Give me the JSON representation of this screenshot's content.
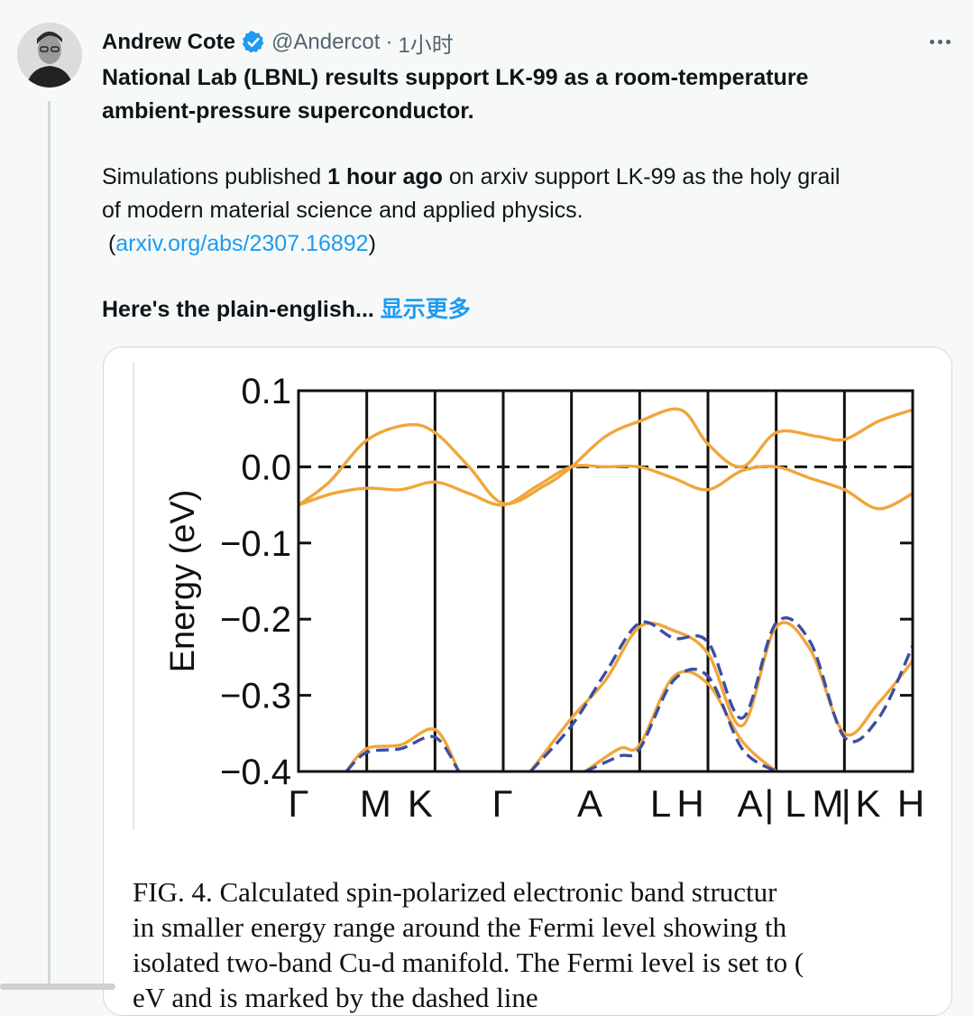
{
  "tweet": {
    "author_name": "Andrew Cote",
    "handle": "@Andercot",
    "separator": "·",
    "time": "1小时",
    "more_icon": "ellipsis-icon",
    "title_line1": "National Lab (LBNL) results support LK-99 as a room-temperature",
    "title_line2": "ambient-pressure superconductor.",
    "body_pre": "Simulations published ",
    "body_bold": "1 hour ago",
    "body_post": " on arxiv support LK-99 as the holy grail",
    "body_line2": "of modern material science and applied physics.",
    "link_open": " (",
    "link_text": "arxiv.org/abs/2307.16892",
    "link_close": ")",
    "teaser": "Here's the plain-english...",
    "show_more": "显示更多",
    "accent_color": "#1d9bf0"
  },
  "figure": {
    "caption_line1": "FIG. 4.  Calculated spin-polarized electronic band structur",
    "caption_line2": "in smaller energy range around the Fermi level showing th",
    "caption_line3": "isolated two-band Cu-d manifold. The Fermi level is set to (",
    "caption_line4": "eV and is marked by the dashed line"
  },
  "chart_data": {
    "type": "line",
    "ylabel": "Energy (eV)",
    "ylim": [
      -0.4,
      0.1
    ],
    "yticks": [
      "0.1",
      "0.0",
      "−0.1",
      "−0.2",
      "−0.3",
      "−0.4"
    ],
    "kpoints": [
      "Γ",
      "M",
      "K",
      "Γ",
      "A",
      "L",
      "H",
      "A|L",
      "M|K",
      "H"
    ],
    "xtick_labels": [
      "Γ",
      "M",
      "K",
      "Γ",
      "A",
      "L",
      "H",
      "A",
      "|",
      "L",
      "M",
      "|",
      "K",
      "H"
    ],
    "fermi_level": 0.0,
    "colors": {
      "spin_up": "#f0a63a",
      "spin_down": "#3b4ea1"
    },
    "series": [
      {
        "color": "orange",
        "style": "solid",
        "x": [
          0,
          0.45,
          1,
          1.6,
          2,
          2.5,
          3,
          3.6,
          4,
          4.5,
          5,
          5.6,
          6,
          6.5,
          7,
          7.6,
          8,
          8.5,
          9
        ],
        "y": [
          -0.05,
          -0.02,
          0.035,
          0.055,
          0.045,
          0.0,
          -0.048,
          -0.025,
          0.0,
          0.04,
          0.06,
          0.075,
          0.03,
          0.0,
          0.045,
          0.04,
          0.036,
          0.06,
          0.075
        ]
      },
      {
        "color": "orange",
        "style": "solid",
        "x": [
          0,
          0.5,
          1,
          1.5,
          2,
          2.5,
          3,
          3.5,
          4,
          4.5,
          5,
          5.5,
          6,
          6.5,
          7,
          7.5,
          8,
          8.5,
          9
        ],
        "y": [
          -0.05,
          -0.035,
          -0.028,
          -0.03,
          -0.02,
          -0.035,
          -0.05,
          -0.025,
          0.0,
          0.0,
          0.0,
          -0.015,
          -0.03,
          -0.005,
          0.0,
          -0.015,
          -0.03,
          -0.055,
          -0.035
        ]
      },
      {
        "color": "orange",
        "style": "solid",
        "x": [
          0.7,
          1,
          1.5,
          2,
          2.35
        ],
        "y": [
          -0.4,
          -0.37,
          -0.365,
          -0.345,
          -0.4
        ]
      },
      {
        "color": "blue",
        "style": "dashed",
        "x": [
          0.7,
          1,
          1.5,
          2,
          2.35
        ],
        "y": [
          -0.4,
          -0.375,
          -0.37,
          -0.355,
          -0.4
        ]
      },
      {
        "color": "orange",
        "style": "solid",
        "x": [
          3.4,
          4,
          4.5,
          5,
          5.5,
          6,
          6.5,
          7,
          7.5,
          8,
          8.5,
          9
        ],
        "y": [
          -0.4,
          -0.33,
          -0.28,
          -0.21,
          -0.215,
          -0.245,
          -0.34,
          -0.21,
          -0.24,
          -0.35,
          -0.31,
          -0.255
        ]
      },
      {
        "color": "blue",
        "style": "dashed",
        "x": [
          3.4,
          4,
          4.5,
          5,
          5.5,
          6,
          6.5,
          7,
          7.5,
          8,
          8.5,
          9
        ],
        "y": [
          -0.4,
          -0.34,
          -0.27,
          -0.205,
          -0.225,
          -0.23,
          -0.33,
          -0.205,
          -0.23,
          -0.355,
          -0.33,
          -0.235
        ]
      },
      {
        "color": "orange",
        "style": "solid",
        "x": [
          4.2,
          4.7,
          5,
          5.5,
          6,
          6.5,
          7
        ],
        "y": [
          -0.4,
          -0.37,
          -0.365,
          -0.275,
          -0.285,
          -0.36,
          -0.4
        ]
      },
      {
        "color": "blue",
        "style": "dashed",
        "x": [
          4.2,
          4.7,
          5,
          5.5,
          6,
          6.5,
          7
        ],
        "y": [
          -0.4,
          -0.38,
          -0.37,
          -0.28,
          -0.275,
          -0.37,
          -0.4
        ]
      }
    ]
  }
}
